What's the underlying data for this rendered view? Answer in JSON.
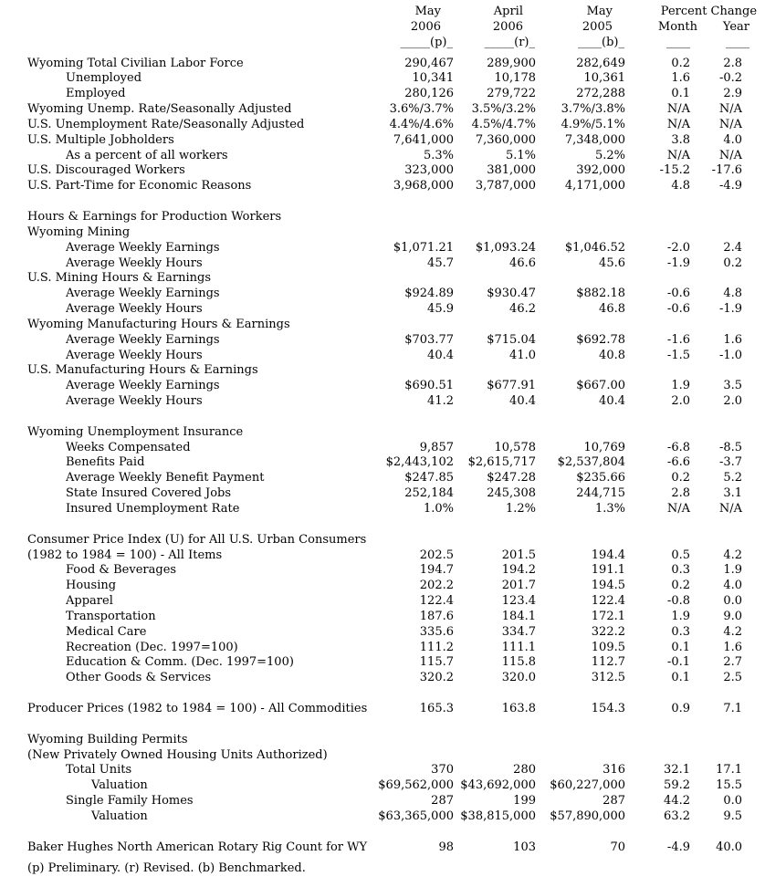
{
  "header": {
    "may2006": {
      "month": "May",
      "year": "2006",
      "rule": "_____(p)_"
    },
    "april2006": {
      "month": "April",
      "year": "2006",
      "rule": "_____(r)_"
    },
    "may2005": {
      "month": "May",
      "year": "2005",
      "rule": "____(b)_"
    },
    "percent_change": {
      "title": "Percent Change",
      "month": "Month",
      "year": "Year",
      "month_rule": "____",
      "year_rule": "____"
    }
  },
  "rows": [
    {
      "label": "Wyoming Total Civilian Labor Force",
      "indent": 0,
      "values": [
        "290,467",
        "289,900",
        "282,649",
        "0.2",
        "2.8"
      ]
    },
    {
      "label": "Unemployed",
      "indent": 1,
      "values": [
        "10,341",
        "10,178",
        "10,361",
        "1.6",
        "-0.2"
      ]
    },
    {
      "label": "Employed",
      "indent": 1,
      "values": [
        "280,126",
        "279,722",
        "272,288",
        "0.1",
        "2.9"
      ]
    },
    {
      "label": "Wyoming Unemp. Rate/Seasonally Adjusted",
      "indent": 0,
      "values": [
        "3.6%/3.7%",
        "3.5%/3.2%",
        "3.7%/3.8%",
        "N/A",
        "N/A"
      ]
    },
    {
      "label": "U.S. Unemployment Rate/Seasonally Adjusted",
      "indent": 0,
      "values": [
        "4.4%/4.6%",
        "4.5%/4.7%",
        "4.9%/5.1%",
        "N/A",
        "N/A"
      ]
    },
    {
      "label": "U.S. Multiple Jobholders",
      "indent": 0,
      "values": [
        "7,641,000",
        "7,360,000",
        "7,348,000",
        "3.8",
        "4.0"
      ]
    },
    {
      "label": "As a percent of all workers",
      "indent": 1,
      "values": [
        "5.3%",
        "5.1%",
        "5.2%",
        "N/A",
        "N/A"
      ]
    },
    {
      "label": "U.S. Discouraged Workers",
      "indent": 0,
      "values": [
        "323,000",
        "381,000",
        "392,000",
        "-15.2",
        "-17.6"
      ]
    },
    {
      "label": "U.S. Part-Time for Economic Reasons",
      "indent": 0,
      "values": [
        "3,968,000",
        "3,787,000",
        "4,171,000",
        "4.8",
        "-4.9"
      ]
    },
    {
      "blank": true
    },
    {
      "label": "Hours & Earnings for Production Workers",
      "indent": 0,
      "values": [
        "",
        "",
        "",
        "",
        ""
      ]
    },
    {
      "label": "Wyoming Mining",
      "indent": 0,
      "values": [
        "",
        "",
        "",
        "",
        ""
      ]
    },
    {
      "label": "Average Weekly Earnings",
      "indent": 1,
      "values": [
        "$1,071.21",
        "$1,093.24",
        "$1,046.52",
        "-2.0",
        "2.4"
      ]
    },
    {
      "label": "Average Weekly Hours",
      "indent": 1,
      "values": [
        "45.7",
        "46.6",
        "45.6",
        "-1.9",
        "0.2"
      ]
    },
    {
      "label": "U.S. Mining Hours & Earnings",
      "indent": 0,
      "values": [
        "",
        "",
        "",
        "",
        ""
      ]
    },
    {
      "label": "Average Weekly Earnings",
      "indent": 1,
      "values": [
        "$924.89",
        "$930.47",
        "$882.18",
        "-0.6",
        "4.8"
      ]
    },
    {
      "label": "Average Weekly Hours",
      "indent": 1,
      "values": [
        "45.9",
        "46.2",
        "46.8",
        "-0.6",
        "-1.9"
      ]
    },
    {
      "label": "Wyoming Manufacturing Hours & Earnings",
      "indent": 0,
      "values": [
        "",
        "",
        "",
        "",
        ""
      ]
    },
    {
      "label": "Average Weekly Earnings",
      "indent": 1,
      "values": [
        "$703.77",
        "$715.04",
        "$692.78",
        "-1.6",
        "1.6"
      ]
    },
    {
      "label": "Average Weekly Hours",
      "indent": 1,
      "values": [
        "40.4",
        "41.0",
        "40.8",
        "-1.5",
        "-1.0"
      ]
    },
    {
      "label": "U.S. Manufacturing Hours & Earnings",
      "indent": 0,
      "values": [
        "",
        "",
        "",
        "",
        ""
      ]
    },
    {
      "label": "Average Weekly Earnings",
      "indent": 1,
      "values": [
        "$690.51",
        "$677.91",
        "$667.00",
        "1.9",
        "3.5"
      ]
    },
    {
      "label": "Average Weekly Hours",
      "indent": 1,
      "values": [
        "41.2",
        "40.4",
        "40.4",
        "2.0",
        "2.0"
      ]
    },
    {
      "blank": true
    },
    {
      "label": "Wyoming Unemployment Insurance",
      "indent": 0,
      "values": [
        "",
        "",
        "",
        "",
        ""
      ]
    },
    {
      "label": "Weeks Compensated",
      "indent": 1,
      "values": [
        "9,857",
        "10,578",
        "10,769",
        "-6.8",
        "-8.5"
      ]
    },
    {
      "label": "Benefits Paid",
      "indent": 1,
      "values": [
        "$2,443,102",
        "$2,615,717",
        "$2,537,804",
        "-6.6",
        "-3.7"
      ]
    },
    {
      "label": "Average Weekly Benefit Payment",
      "indent": 1,
      "values": [
        "$247.85",
        "$247.28",
        "$235.66",
        "0.2",
        "5.2"
      ]
    },
    {
      "label": "State Insured Covered Jobs",
      "indent": 1,
      "values": [
        "252,184",
        "245,308",
        "244,715",
        "2.8",
        "3.1"
      ]
    },
    {
      "label": "Insured Unemployment Rate",
      "indent": 1,
      "values": [
        "1.0%",
        "1.2%",
        "1.3%",
        "N/A",
        "N/A"
      ]
    },
    {
      "blank": true
    },
    {
      "label": "Consumer Price Index (U) for All U.S. Urban Consumers",
      "indent": 0,
      "values": [
        "",
        "",
        "",
        "",
        ""
      ]
    },
    {
      "label": "(1982 to 1984 = 100) - All Items",
      "indent": 0,
      "values": [
        "202.5",
        "201.5",
        "194.4",
        "0.5",
        "4.2"
      ]
    },
    {
      "label": "Food & Beverages",
      "indent": 1,
      "values": [
        "194.7",
        "194.2",
        "191.1",
        "0.3",
        "1.9"
      ]
    },
    {
      "label": "Housing",
      "indent": 1,
      "values": [
        "202.2",
        "201.7",
        "194.5",
        "0.2",
        "4.0"
      ]
    },
    {
      "label": "Apparel",
      "indent": 1,
      "values": [
        "122.4",
        "123.4",
        "122.4",
        "-0.8",
        "0.0"
      ]
    },
    {
      "label": "Transportation",
      "indent": 1,
      "values": [
        "187.6",
        "184.1",
        "172.1",
        "1.9",
        "9.0"
      ]
    },
    {
      "label": "Medical Care",
      "indent": 1,
      "values": [
        "335.6",
        "334.7",
        "322.2",
        "0.3",
        "4.2"
      ]
    },
    {
      "label": "Recreation (Dec. 1997=100)",
      "indent": 1,
      "values": [
        "111.2",
        "111.1",
        "109.5",
        "0.1",
        "1.6"
      ]
    },
    {
      "label": "Education & Comm. (Dec. 1997=100)",
      "indent": 1,
      "values": [
        "115.7",
        "115.8",
        "112.7",
        "-0.1",
        "2.7"
      ]
    },
    {
      "label": "Other Goods & Services",
      "indent": 1,
      "values": [
        "320.2",
        "320.0",
        "312.5",
        "0.1",
        "2.5"
      ]
    },
    {
      "blank": true
    },
    {
      "label": "Producer Prices (1982 to 1984 = 100) - All Commodities",
      "indent": 0,
      "values": [
        "165.3",
        "163.8",
        "154.3",
        "0.9",
        "7.1"
      ]
    },
    {
      "blank": true
    },
    {
      "label": "Wyoming Building Permits",
      "indent": 0,
      "values": [
        "",
        "",
        "",
        "",
        ""
      ]
    },
    {
      "label": "(New Privately Owned Housing Units Authorized)",
      "indent": 0,
      "values": [
        "",
        "",
        "",
        "",
        ""
      ]
    },
    {
      "label": "Total Units",
      "indent": 1,
      "values": [
        "370",
        "280",
        "316",
        "32.1",
        "17.1"
      ]
    },
    {
      "label": "Valuation",
      "indent": 2,
      "values": [
        "$69,562,000",
        "$43,692,000",
        "$60,227,000",
        "59.2",
        "15.5"
      ]
    },
    {
      "label": "Single Family Homes",
      "indent": 1,
      "values": [
        "287",
        "199",
        "287",
        "44.2",
        "0.0"
      ]
    },
    {
      "label": "Valuation",
      "indent": 2,
      "values": [
        "$63,365,000",
        "$38,815,000",
        "$57,890,000",
        "63.2",
        "9.5"
      ]
    },
    {
      "blank": true
    },
    {
      "label": "Baker Hughes North American Rotary Rig Count for WY",
      "indent": 0,
      "values": [
        "98",
        "103",
        "70",
        "-4.9",
        "40.0"
      ]
    }
  ],
  "footnote": "(p) Preliminary. (r) Revised. (b) Benchmarked."
}
